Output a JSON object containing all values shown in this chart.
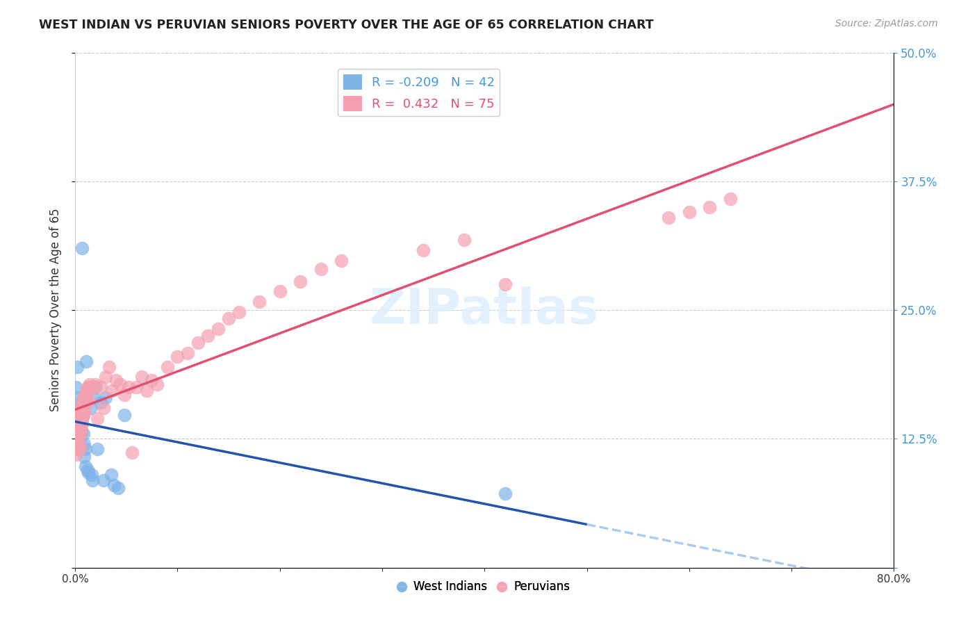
{
  "title": "WEST INDIAN VS PERUVIAN SENIORS POVERTY OVER THE AGE OF 65 CORRELATION CHART",
  "source": "Source: ZipAtlas.com",
  "xlabel": "",
  "ylabel": "Seniors Poverty Over the Age of 65",
  "xlim": [
    0.0,
    0.8
  ],
  "ylim": [
    0.0,
    0.5
  ],
  "xticks": [
    0.0,
    0.1,
    0.2,
    0.3,
    0.4,
    0.5,
    0.6,
    0.7,
    0.8
  ],
  "yticks": [
    0.0,
    0.125,
    0.25,
    0.375,
    0.5
  ],
  "ytick_labels": [
    "",
    "12.5%",
    "25.0%",
    "37.5%",
    "50.0%"
  ],
  "xtick_labels": [
    "0.0%",
    "",
    "",
    "",
    "",
    "",
    "",
    "",
    "80.0%"
  ],
  "west_indian_color": "#7EB3E8",
  "peruvian_color": "#F4A0B0",
  "west_indian_R": -0.209,
  "west_indian_N": 42,
  "peruvian_R": 0.432,
  "peruvian_N": 75,
  "blue_line_color": "#2255AA",
  "pink_line_color": "#E05070",
  "dashed_extension_color": "#AACCEE",
  "watermark": "ZIPatlas",
  "west_indian_x": [
    0.001,
    0.002,
    0.002,
    0.003,
    0.003,
    0.003,
    0.004,
    0.004,
    0.004,
    0.004,
    0.005,
    0.005,
    0.005,
    0.006,
    0.006,
    0.006,
    0.007,
    0.007,
    0.008,
    0.008,
    0.009,
    0.009,
    0.01,
    0.01,
    0.011,
    0.012,
    0.013,
    0.015,
    0.016,
    0.017,
    0.018,
    0.02,
    0.022,
    0.025,
    0.028,
    0.03,
    0.035,
    0.038,
    0.042,
    0.048,
    0.42,
    0.007
  ],
  "west_indian_y": [
    0.175,
    0.195,
    0.165,
    0.155,
    0.147,
    0.137,
    0.148,
    0.142,
    0.135,
    0.125,
    0.15,
    0.142,
    0.13,
    0.155,
    0.148,
    0.132,
    0.16,
    0.145,
    0.148,
    0.13,
    0.12,
    0.108,
    0.115,
    0.098,
    0.2,
    0.095,
    0.092,
    0.155,
    0.09,
    0.085,
    0.165,
    0.175,
    0.115,
    0.16,
    0.085,
    0.165,
    0.09,
    0.08,
    0.077,
    0.148,
    0.072,
    0.31
  ],
  "peruvian_x": [
    0.001,
    0.001,
    0.002,
    0.002,
    0.002,
    0.003,
    0.003,
    0.003,
    0.003,
    0.004,
    0.004,
    0.004,
    0.004,
    0.005,
    0.005,
    0.005,
    0.005,
    0.006,
    0.006,
    0.006,
    0.007,
    0.007,
    0.007,
    0.008,
    0.008,
    0.009,
    0.009,
    0.01,
    0.01,
    0.011,
    0.012,
    0.012,
    0.013,
    0.013,
    0.014,
    0.015,
    0.016,
    0.018,
    0.02,
    0.022,
    0.025,
    0.028,
    0.03,
    0.033,
    0.036,
    0.04,
    0.044,
    0.048,
    0.052,
    0.056,
    0.06,
    0.065,
    0.07,
    0.075,
    0.08,
    0.09,
    0.1,
    0.11,
    0.12,
    0.13,
    0.14,
    0.15,
    0.16,
    0.18,
    0.2,
    0.22,
    0.24,
    0.26,
    0.34,
    0.38,
    0.42,
    0.58,
    0.6,
    0.62,
    0.64
  ],
  "peruvian_y": [
    0.12,
    0.11,
    0.145,
    0.13,
    0.115,
    0.148,
    0.138,
    0.128,
    0.118,
    0.15,
    0.14,
    0.128,
    0.115,
    0.155,
    0.142,
    0.13,
    0.118,
    0.155,
    0.148,
    0.135,
    0.16,
    0.152,
    0.14,
    0.165,
    0.148,
    0.165,
    0.15,
    0.168,
    0.158,
    0.172,
    0.175,
    0.162,
    0.175,
    0.162,
    0.178,
    0.175,
    0.175,
    0.175,
    0.178,
    0.145,
    0.175,
    0.155,
    0.185,
    0.195,
    0.172,
    0.182,
    0.178,
    0.168,
    0.175,
    0.112,
    0.175,
    0.185,
    0.172,
    0.182,
    0.178,
    0.195,
    0.205,
    0.208,
    0.218,
    0.225,
    0.232,
    0.242,
    0.248,
    0.258,
    0.268,
    0.278,
    0.29,
    0.298,
    0.308,
    0.318,
    0.275,
    0.34,
    0.345,
    0.35,
    0.358
  ]
}
